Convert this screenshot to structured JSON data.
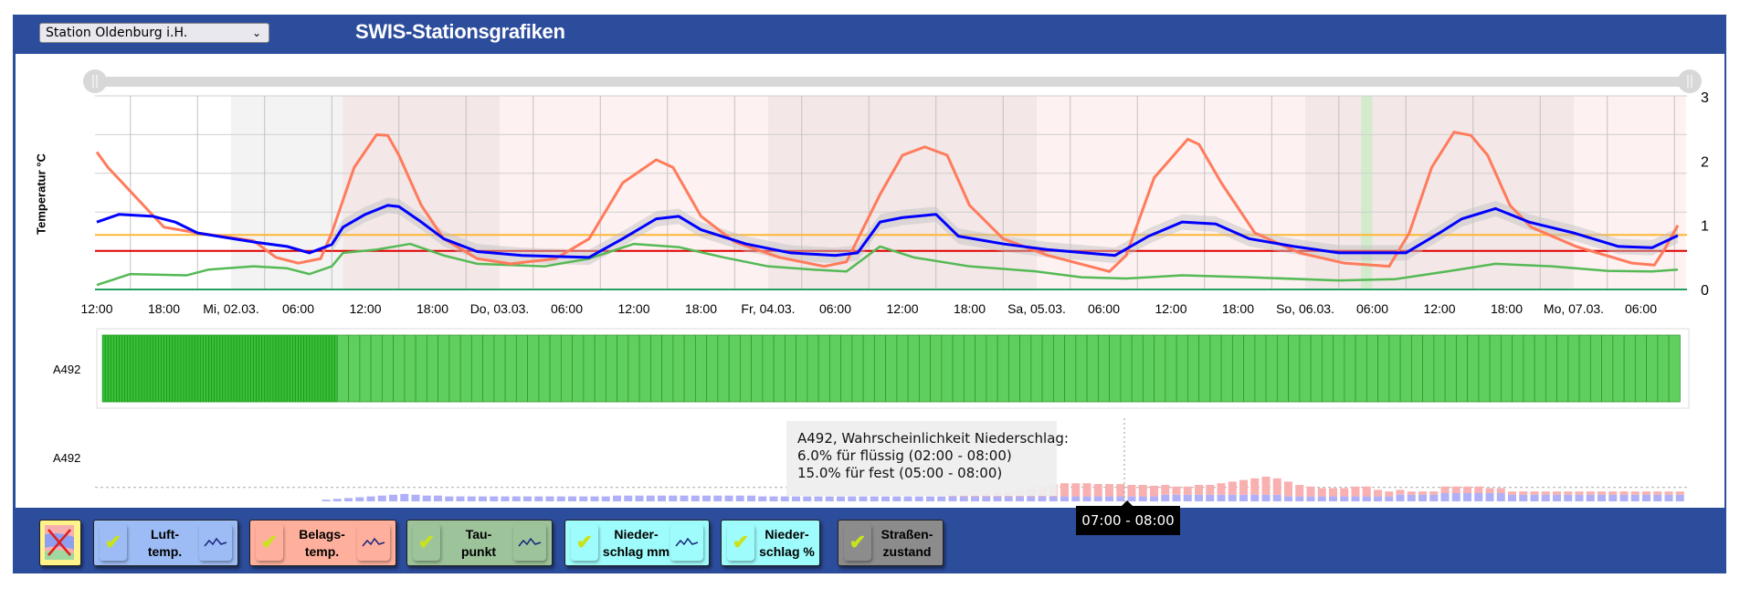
{
  "header": {
    "station_select": "Station Oldenburg i.H.",
    "title": "SWIS-Stationsgrafiken"
  },
  "colors": {
    "brand": "#2c4c9c",
    "luft": "#0000ff",
    "belag": "#ff7b5c",
    "taupunkt": "#55b955",
    "threshold_orange": "#ffb733",
    "threshold_red": "#e00000",
    "road_dry": "#5fcf5f",
    "precip_liquid": "#b0b0f8",
    "precip_solid": "#f8b0b0"
  },
  "chart_data": [
    {
      "type": "line",
      "ylabel": "Temperatur °C",
      "ylim": [
        0,
        3
      ],
      "yticks": [
        "0",
        "1",
        "2",
        "3"
      ],
      "x_unit": "hours since Di 01.03. 12:00",
      "xlim": [
        0,
        142
      ],
      "xtick_labels": [
        "12:00",
        "18:00",
        "Mi, 02.03.",
        "06:00",
        "12:00",
        "18:00",
        "Do, 03.03.",
        "06:00",
        "12:00",
        "18:00",
        "Fr, 04.03.",
        "06:00",
        "12:00",
        "18:00",
        "Sa, 05.03.",
        "06:00",
        "12:00",
        "18:00",
        "So, 06.03.",
        "06:00",
        "12:00",
        "18:00",
        "Mo, 07.03.",
        "06:00"
      ],
      "bands": [
        {
          "from": 12,
          "to": 22,
          "kind": "measured"
        },
        {
          "from": 22,
          "to": 36,
          "kind": "day"
        },
        {
          "from": 36,
          "to": 60,
          "kind": "night"
        },
        {
          "from": 60,
          "to": 84,
          "kind": "day"
        },
        {
          "from": 84,
          "to": 108,
          "kind": "night"
        },
        {
          "from": 108,
          "to": 132,
          "kind": "day"
        },
        {
          "from": 132,
          "to": 142,
          "kind": "night"
        },
        {
          "from": 113,
          "to": 114,
          "kind": "marker"
        }
      ],
      "thresholds": [
        {
          "name": "orange",
          "value": 0.85
        },
        {
          "name": "red",
          "value": 0.6
        },
        {
          "name": "zero",
          "value": 0
        }
      ],
      "series": [
        {
          "name": "Belagstemperatur",
          "points": [
            [
              0,
              2.14
            ],
            [
              1,
              1.9
            ],
            [
              6,
              0.97
            ],
            [
              9,
              0.88
            ],
            [
              14,
              0.76
            ],
            [
              16,
              0.5
            ],
            [
              18,
              0.41
            ],
            [
              20,
              0.48
            ],
            [
              21,
              0.88
            ],
            [
              23,
              1.9
            ],
            [
              25,
              2.41
            ],
            [
              26,
              2.4
            ],
            [
              27,
              2.09
            ],
            [
              29,
              1.31
            ],
            [
              31,
              0.79
            ],
            [
              34,
              0.48
            ],
            [
              37,
              0.4
            ],
            [
              41,
              0.48
            ],
            [
              44,
              0.79
            ],
            [
              47,
              1.66
            ],
            [
              50,
              2.02
            ],
            [
              51.5,
              1.9
            ],
            [
              54,
              1.14
            ],
            [
              57,
              0.74
            ],
            [
              61,
              0.5
            ],
            [
              65,
              0.36
            ],
            [
              67,
              0.43
            ],
            [
              70,
              1.48
            ],
            [
              72,
              2.09
            ],
            [
              74,
              2.22
            ],
            [
              76,
              2.09
            ],
            [
              78,
              1.31
            ],
            [
              81,
              0.79
            ],
            [
              85,
              0.53
            ],
            [
              90.5,
              0.28
            ],
            [
              92,
              0.53
            ],
            [
              94.5,
              1.74
            ],
            [
              97.5,
              2.34
            ],
            [
              98.5,
              2.26
            ],
            [
              100.5,
              1.66
            ],
            [
              103.5,
              0.88
            ],
            [
              107.5,
              0.57
            ],
            [
              111.5,
              0.41
            ],
            [
              115.5,
              0.36
            ],
            [
              117.3,
              0.88
            ],
            [
              119.3,
              1.9
            ],
            [
              121.3,
              2.45
            ],
            [
              122.8,
              2.4
            ],
            [
              124.3,
              2.09
            ],
            [
              126.3,
              1.31
            ],
            [
              128.2,
              0.97
            ],
            [
              132.2,
              0.67
            ],
            [
              137.2,
              0.41
            ],
            [
              139.2,
              0.38
            ],
            [
              140.1,
              0.62
            ],
            [
              141.3,
              1.0
            ]
          ]
        },
        {
          "name": "Lufttemperatur",
          "points": [
            [
              0,
              1.05
            ],
            [
              2,
              1.17
            ],
            [
              5,
              1.14
            ],
            [
              7,
              1.05
            ],
            [
              9,
              0.88
            ],
            [
              14,
              0.74
            ],
            [
              17,
              0.67
            ],
            [
              19,
              0.57
            ],
            [
              21,
              0.7
            ],
            [
              22,
              0.97
            ],
            [
              24,
              1.17
            ],
            [
              26,
              1.31
            ],
            [
              27,
              1.29
            ],
            [
              29,
              1.05
            ],
            [
              31,
              0.79
            ],
            [
              34,
              0.59
            ],
            [
              38,
              0.53
            ],
            [
              44,
              0.5
            ],
            [
              47,
              0.79
            ],
            [
              50,
              1.1
            ],
            [
              52,
              1.14
            ],
            [
              54,
              0.93
            ],
            [
              58,
              0.71
            ],
            [
              62,
              0.57
            ],
            [
              66,
              0.53
            ],
            [
              68,
              0.57
            ],
            [
              70,
              1.05
            ],
            [
              72,
              1.12
            ],
            [
              75,
              1.17
            ],
            [
              77,
              0.83
            ],
            [
              81,
              0.71
            ],
            [
              85,
              0.62
            ],
            [
              91,
              0.53
            ],
            [
              94,
              0.83
            ],
            [
              97,
              1.05
            ],
            [
              100,
              1.02
            ],
            [
              103,
              0.79
            ],
            [
              107,
              0.67
            ],
            [
              111,
              0.57
            ],
            [
              117,
              0.57
            ],
            [
              120,
              0.88
            ],
            [
              122,
              1.1
            ],
            [
              125,
              1.26
            ],
            [
              128,
              1.05
            ],
            [
              132,
              0.88
            ],
            [
              136,
              0.67
            ],
            [
              139,
              0.65
            ],
            [
              141.3,
              0.84
            ]
          ],
          "uncertainty_from": 21,
          "uncertainty": 0.12
        },
        {
          "name": "Taupunkt",
          "points": [
            [
              0,
              0.07
            ],
            [
              3,
              0.24
            ],
            [
              8,
              0.22
            ],
            [
              10,
              0.31
            ],
            [
              14,
              0.36
            ],
            [
              17,
              0.33
            ],
            [
              19,
              0.24
            ],
            [
              21,
              0.36
            ],
            [
              22,
              0.57
            ],
            [
              25,
              0.62
            ],
            [
              28,
              0.71
            ],
            [
              31,
              0.53
            ],
            [
              34,
              0.4
            ],
            [
              40,
              0.36
            ],
            [
              44,
              0.48
            ],
            [
              48,
              0.71
            ],
            [
              52,
              0.66
            ],
            [
              56,
              0.5
            ],
            [
              60,
              0.36
            ],
            [
              64,
              0.31
            ],
            [
              67,
              0.28
            ],
            [
              70,
              0.67
            ],
            [
              73,
              0.5
            ],
            [
              78,
              0.36
            ],
            [
              84,
              0.28
            ],
            [
              88,
              0.19
            ],
            [
              92,
              0.17
            ],
            [
              97,
              0.22
            ],
            [
              103,
              0.19
            ],
            [
              111,
              0.14
            ],
            [
              116,
              0.16
            ],
            [
              121,
              0.29
            ],
            [
              125,
              0.4
            ],
            [
              130,
              0.36
            ],
            [
              135,
              0.29
            ],
            [
              139,
              0.28
            ],
            [
              141.3,
              0.31
            ]
          ]
        }
      ]
    },
    {
      "type": "bar",
      "title": "A492",
      "segments": [
        {
          "from": 0.5,
          "to": 21.5,
          "step": 0.25,
          "state": "dense"
        },
        {
          "from": 21.5,
          "to": 141.5,
          "step": 1,
          "state": "hourly"
        }
      ]
    },
    {
      "type": "bar",
      "title": "A492",
      "start_hour": 20,
      "liquid_percent": [
        2,
        3,
        4,
        5,
        6,
        7,
        8,
        9,
        8,
        7,
        7,
        6,
        6,
        6,
        6,
        6,
        6,
        6,
        6,
        6,
        6,
        6,
        6,
        6,
        6,
        6,
        7,
        7,
        7,
        7,
        7,
        7,
        7,
        7,
        7,
        7,
        7,
        7,
        7,
        6,
        6,
        6,
        6,
        6,
        6,
        6,
        6,
        6,
        6,
        6,
        6,
        6,
        6,
        6,
        6,
        6,
        6,
        6,
        6,
        6,
        6,
        6,
        6,
        6,
        6,
        6,
        6,
        6,
        6,
        6,
        6,
        6,
        6,
        6,
        6,
        8,
        8,
        8,
        8,
        8,
        8,
        8,
        8,
        8,
        8,
        8,
        6,
        6,
        6,
        6,
        6,
        6,
        6,
        6,
        6,
        6,
        8,
        8,
        8,
        8,
        10,
        10,
        10,
        10,
        10,
        10,
        8,
        8,
        8,
        8,
        8,
        8,
        8,
        8,
        8,
        8,
        8,
        8,
        8,
        8,
        8,
        8
      ],
      "solid_percent": [
        0,
        0,
        0,
        0,
        0,
        0,
        0,
        0,
        0,
        0,
        0,
        0,
        0,
        0,
        0,
        0,
        0,
        0,
        0,
        0,
        0,
        0,
        0,
        0,
        0,
        0,
        0,
        0,
        0,
        0,
        0,
        0,
        0,
        0,
        0,
        0,
        0,
        0,
        0,
        0,
        0,
        0,
        0,
        0,
        0,
        0,
        0,
        0,
        0,
        0,
        0,
        0,
        0,
        0,
        0,
        0,
        1,
        2,
        3,
        4,
        5,
        6,
        8,
        10,
        12,
        15,
        16,
        16,
        16,
        15,
        15,
        15,
        14,
        14,
        13,
        12,
        10,
        10,
        12,
        12,
        14,
        16,
        18,
        20,
        22,
        20,
        18,
        14,
        12,
        10,
        10,
        10,
        12,
        12,
        8,
        6,
        6,
        4,
        4,
        4,
        8,
        8,
        8,
        8,
        6,
        6,
        4,
        4,
        4,
        4,
        4,
        4,
        4,
        4,
        4,
        4,
        4,
        4,
        4,
        4,
        4,
        4
      ],
      "threshold_percent": 17
    }
  ],
  "tooltip": {
    "lines": [
      "A492, Wahrscheinlichkeit Niederschlag:",
      "6.0% für flüssig (02:00 - 08:00)",
      "15.0% für fest (05:00 - 08:00)"
    ]
  },
  "crosshair": {
    "label": "07:00 - 08:00",
    "hour": 91
  },
  "legend_buttons": [
    {
      "id": "luft",
      "label1": "Luft-",
      "label2": "temp.",
      "checked": true,
      "color": "#9dbcf5"
    },
    {
      "id": "belag",
      "label1": "Belags-",
      "label2": "temp.",
      "checked": true,
      "color": "#ffb09d"
    },
    {
      "id": "tau",
      "label1": "Tau-",
      "label2": "punkt",
      "checked": true,
      "color": "#9dc39a"
    },
    {
      "id": "niederschlag-mm",
      "label1": "Nieder-",
      "label2": "schlag mm",
      "checked": true,
      "color": "#9ffcfc"
    },
    {
      "id": "niederschlag-pct",
      "label1": "Nieder-",
      "label2": "schlag %",
      "checked": true,
      "color": "#9ffcfc"
    },
    {
      "id": "strassenzustand",
      "label1": "Straßen-",
      "label2": "zustand",
      "checked": true,
      "color": "#8c8c8c"
    }
  ]
}
